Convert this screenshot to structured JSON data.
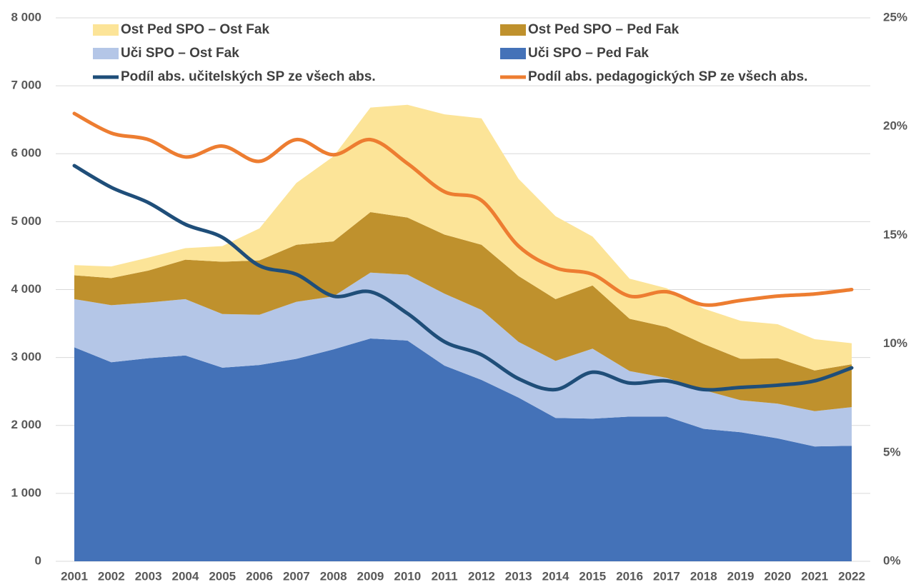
{
  "chart_data": {
    "type": "stacked-area-line",
    "categories": [
      "2001",
      "2002",
      "2003",
      "2004",
      "2005",
      "2006",
      "2007",
      "2008",
      "2009",
      "2010",
      "2011",
      "2012",
      "2013",
      "2014",
      "2015",
      "2016",
      "2017",
      "2018",
      "2019",
      "2020",
      "2021",
      "2022"
    ],
    "series": [
      {
        "name": "Ost Ped SPO – Ost Fak",
        "color": "#fce498",
        "kind": "area",
        "values": [
          150,
          170,
          190,
          170,
          230,
          470,
          910,
          1250,
          1540,
          1660,
          1770,
          1860,
          1430,
          1220,
          720,
          590,
          570,
          520,
          560,
          500,
          460,
          310
        ]
      },
      {
        "name": "Ost Ped SPO – Ped Fak",
        "color": "#bf912d",
        "kind": "area",
        "values": [
          350,
          400,
          470,
          580,
          770,
          800,
          840,
          810,
          890,
          840,
          870,
          960,
          970,
          910,
          930,
          770,
          750,
          680,
          610,
          670,
          600,
          630
        ]
      },
      {
        "name": "Uči SPO – Ost Fak",
        "color": "#b4c6e7",
        "kind": "area",
        "values": [
          710,
          840,
          820,
          830,
          790,
          740,
          840,
          780,
          970,
          970,
          1060,
          1030,
          820,
          840,
          1030,
          670,
          570,
          570,
          470,
          510,
          520,
          570
        ]
      },
      {
        "name": "Uči SPO – Ped Fak",
        "color": "#4472b8",
        "kind": "area",
        "values": [
          3150,
          2930,
          2990,
          3030,
          2850,
          2890,
          2980,
          3120,
          3280,
          3250,
          2880,
          2670,
          2410,
          2110,
          2100,
          2130,
          2130,
          1950,
          1900,
          1810,
          1690,
          1700
        ]
      },
      {
        "name": "Podíl abs. učitelských SP ze všech abs.",
        "color": "#1f4e79",
        "kind": "line",
        "axis": "y2",
        "values": [
          18.2,
          17.2,
          16.5,
          15.5,
          14.9,
          13.6,
          13.2,
          12.2,
          12.4,
          11.4,
          10.1,
          9.5,
          8.4,
          7.9,
          8.7,
          8.2,
          8.3,
          7.9,
          8.0,
          8.1,
          8.3,
          8.9
        ]
      },
      {
        "name": "Podíl abs. pedagogických SP ze všech abs.",
        "color": "#ed7d31",
        "kind": "line",
        "axis": "y2",
        "values": [
          20.6,
          19.7,
          19.4,
          18.6,
          19.1,
          18.4,
          19.4,
          18.7,
          19.4,
          18.3,
          17.0,
          16.6,
          14.5,
          13.5,
          13.2,
          12.2,
          12.4,
          11.8,
          12.0,
          12.2,
          12.3,
          12.5
        ]
      }
    ],
    "ylim": [
      0,
      8000
    ],
    "yticks": [
      0,
      {
        "value": 1000,
        "label": "1 000"
      },
      {
        "value": 2000,
        "label": "2 000"
      },
      {
        "value": 3000,
        "label": "3 000"
      },
      {
        "value": 4000,
        "label": "4 000"
      },
      {
        "value": 5000,
        "label": "5 000"
      },
      {
        "value": 6000,
        "label": "6 000"
      },
      {
        "value": 7000,
        "label": "7 000"
      },
      {
        "value": 8000,
        "label": "8 000"
      }
    ],
    "y2lim": [
      0,
      25
    ],
    "y2ticks": [
      {
        "value": 0,
        "label": "0%"
      },
      {
        "value": 5,
        "label": "5%"
      },
      {
        "value": 10,
        "label": "10%"
      },
      {
        "value": 15,
        "label": "15%"
      },
      {
        "value": 20,
        "label": "20%"
      },
      {
        "value": 25,
        "label": "25%"
      }
    ],
    "grid": true,
    "legend": "top"
  }
}
